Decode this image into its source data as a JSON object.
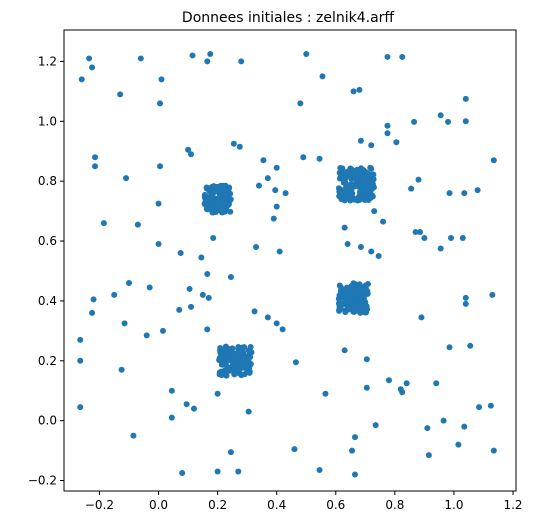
{
  "chart_data": {
    "type": "scatter",
    "title": "Donnees initiales : zelnik4.arff",
    "xlabel": "",
    "ylabel": "",
    "xlim": [
      -0.32,
      1.21
    ],
    "ylim": [
      -0.235,
      1.305
    ],
    "x_ticks": [
      -0.2,
      0.0,
      0.2,
      0.4,
      0.6,
      0.8,
      1.0,
      1.2
    ],
    "y_ticks": [
      -0.2,
      0.0,
      0.2,
      0.4,
      0.6,
      0.8,
      1.0,
      1.2
    ],
    "x_tick_labels": [
      "−0.2",
      "0.0",
      "0.2",
      "0.4",
      "0.6",
      "0.8",
      "1.0",
      "1.2"
    ],
    "y_tick_labels": [
      "−0.2",
      "0.0",
      "0.2",
      "0.4",
      "0.6",
      "0.8",
      "1.0",
      "1.2"
    ],
    "grid": false,
    "legend": "none",
    "marker_color": "#1f77b4",
    "clusters": [
      {
        "center": [
          0.2,
          0.74
        ],
        "half_width": [
          0.045,
          0.045
        ],
        "count": 130
      },
      {
        "center": [
          0.67,
          0.79
        ],
        "half_width": [
          0.06,
          0.055
        ],
        "count": 150
      },
      {
        "center": [
          0.66,
          0.41
        ],
        "half_width": [
          0.05,
          0.05
        ],
        "count": 120
      },
      {
        "center": [
          0.26,
          0.2
        ],
        "half_width": [
          0.055,
          0.05
        ],
        "count": 130
      }
    ],
    "points": [
      [
        -0.26,
        1.14
      ],
      [
        -0.235,
        1.21
      ],
      [
        -0.225,
        1.18
      ],
      [
        -0.13,
        1.09
      ],
      [
        -0.06,
        1.21
      ],
      [
        0.01,
        1.14
      ],
      [
        0.005,
        1.06
      ],
      [
        0.115,
        1.22
      ],
      [
        0.165,
        1.2
      ],
      [
        0.175,
        1.225
      ],
      [
        0.28,
        1.2
      ],
      [
        0.5,
        1.225
      ],
      [
        0.555,
        1.15
      ],
      [
        0.48,
        1.06
      ],
      [
        0.66,
        1.1
      ],
      [
        0.68,
        1.105
      ],
      [
        0.775,
        1.215
      ],
      [
        0.825,
        1.215
      ],
      [
        0.955,
        1.02
      ],
      [
        0.98,
        0.998
      ],
      [
        1.04,
        1.075
      ],
      [
        1.04,
        1.0
      ],
      [
        0.775,
        0.985
      ],
      [
        0.775,
        0.96
      ],
      [
        0.805,
        0.93
      ],
      [
        0.865,
        0.998
      ],
      [
        0.685,
        0.935
      ],
      [
        0.72,
        0.92
      ],
      [
        0.49,
        0.88
      ],
      [
        0.545,
        0.875
      ],
      [
        -0.215,
        0.88
      ],
      [
        -0.215,
        0.85
      ],
      [
        -0.11,
        0.81
      ],
      [
        0.005,
        0.85
      ],
      [
        0.1,
        0.905
      ],
      [
        0.11,
        0.89
      ],
      [
        0.255,
        0.925
      ],
      [
        0.275,
        0.915
      ],
      [
        0.355,
        0.87
      ],
      [
        0.37,
        0.81
      ],
      [
        0.4,
        0.845
      ],
      [
        0.34,
        0.785
      ],
      [
        0.395,
        0.77
      ],
      [
        0.43,
        0.76
      ],
      [
        0.0,
        0.725
      ],
      [
        0.4,
        0.715
      ],
      [
        0.39,
        0.675
      ],
      [
        0.63,
        0.645
      ],
      [
        0.73,
        0.7
      ],
      [
        0.76,
        0.665
      ],
      [
        0.855,
        0.775
      ],
      [
        0.88,
        0.805
      ],
      [
        0.985,
        0.76
      ],
      [
        1.035,
        0.76
      ],
      [
        1.08,
        0.77
      ],
      [
        1.135,
        0.87
      ],
      [
        -0.185,
        0.66
      ],
      [
        -0.07,
        0.655
      ],
      [
        0.0,
        0.59
      ],
      [
        0.075,
        0.56
      ],
      [
        0.145,
        0.545
      ],
      [
        0.185,
        0.61
      ],
      [
        0.33,
        0.58
      ],
      [
        0.41,
        0.565
      ],
      [
        0.64,
        0.59
      ],
      [
        0.685,
        0.58
      ],
      [
        0.72,
        0.565
      ],
      [
        0.745,
        0.55
      ],
      [
        0.87,
        0.63
      ],
      [
        0.885,
        0.63
      ],
      [
        0.9,
        0.61
      ],
      [
        0.955,
        0.575
      ],
      [
        0.99,
        0.61
      ],
      [
        1.03,
        0.61
      ],
      [
        -0.03,
        0.445
      ],
      [
        -0.1,
        0.46
      ],
      [
        -0.15,
        0.42
      ],
      [
        0.105,
        0.44
      ],
      [
        0.15,
        0.42
      ],
      [
        0.165,
        0.49
      ],
      [
        0.17,
        0.41
      ],
      [
        0.245,
        0.48
      ],
      [
        0.07,
        0.37
      ],
      [
        0.11,
        0.38
      ],
      [
        -0.22,
        0.405
      ],
      [
        -0.225,
        0.36
      ],
      [
        -0.115,
        0.325
      ],
      [
        -0.04,
        0.285
      ],
      [
        0.015,
        0.3
      ],
      [
        0.165,
        0.305
      ],
      [
        0.325,
        0.365
      ],
      [
        0.37,
        0.345
      ],
      [
        0.4,
        0.325
      ],
      [
        0.42,
        0.305
      ],
      [
        0.63,
        0.235
      ],
      [
        0.89,
        0.345
      ],
      [
        1.04,
        0.41
      ],
      [
        1.04,
        0.39
      ],
      [
        1.13,
        0.42
      ],
      [
        -0.265,
        0.27
      ],
      [
        -0.265,
        0.2
      ],
      [
        -0.125,
        0.17
      ],
      [
        0.465,
        0.195
      ],
      [
        0.705,
        0.205
      ],
      [
        0.985,
        0.245
      ],
      [
        1.055,
        0.25
      ],
      [
        0.045,
        0.1
      ],
      [
        0.2,
        0.09
      ],
      [
        0.095,
        0.055
      ],
      [
        0.12,
        0.04
      ],
      [
        0.305,
        0.03
      ],
      [
        0.045,
        0.01
      ],
      [
        0.565,
        0.09
      ],
      [
        0.705,
        0.11
      ],
      [
        0.78,
        0.135
      ],
      [
        0.82,
        0.105
      ],
      [
        0.825,
        0.095
      ],
      [
        0.84,
        0.125
      ],
      [
        0.94,
        0.125
      ],
      [
        -0.265,
        0.045
      ],
      [
        -0.085,
        -0.05
      ],
      [
        0.735,
        -0.015
      ],
      [
        0.91,
        -0.025
      ],
      [
        0.965,
        0.0
      ],
      [
        1.035,
        -0.02
      ],
      [
        1.085,
        0.045
      ],
      [
        1.125,
        0.05
      ],
      [
        1.135,
        -0.1
      ],
      [
        1.015,
        -0.08
      ],
      [
        0.915,
        -0.115
      ],
      [
        0.665,
        -0.055
      ],
      [
        0.655,
        -0.1
      ],
      [
        0.46,
        -0.095
      ],
      [
        0.245,
        -0.105
      ],
      [
        0.27,
        -0.17
      ],
      [
        0.2,
        -0.17
      ],
      [
        0.08,
        -0.175
      ],
      [
        0.545,
        -0.165
      ],
      [
        0.665,
        -0.18
      ]
    ]
  }
}
